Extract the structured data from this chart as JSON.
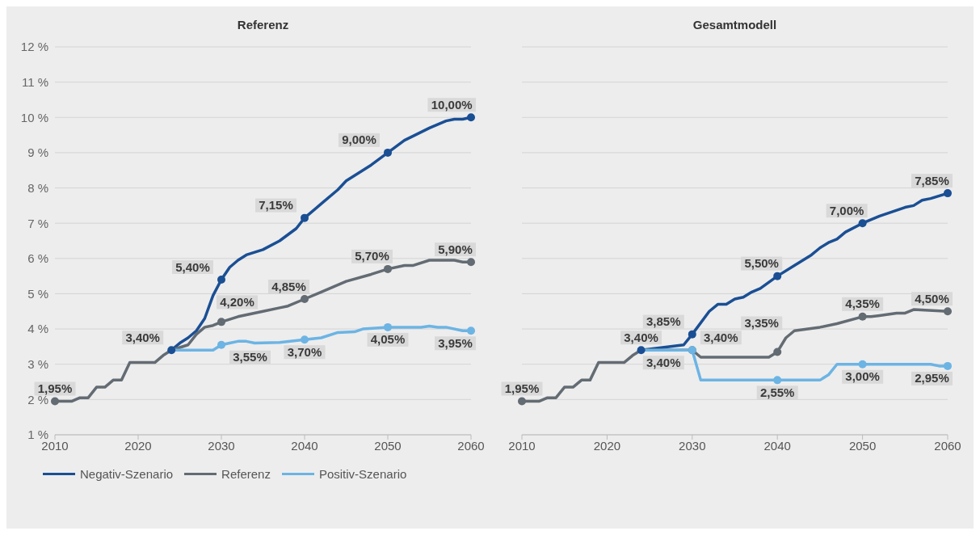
{
  "chart_data": [
    {
      "type": "line",
      "title": "Referenz",
      "xlim": [
        2010,
        2060
      ],
      "xticks": [
        2010,
        2020,
        2030,
        2040,
        2050,
        2060
      ],
      "ylim": [
        1,
        12
      ],
      "yticks": [
        {
          "value": 1,
          "label": "1 %"
        },
        {
          "value": 2,
          "label": "2 %"
        },
        {
          "value": 3,
          "label": "3 %"
        },
        {
          "value": 4,
          "label": "4 %"
        },
        {
          "value": 5,
          "label": "5 %"
        },
        {
          "value": 6,
          "label": "6 %"
        },
        {
          "value": 7,
          "label": "7 %"
        },
        {
          "value": 8,
          "label": "8 %"
        },
        {
          "value": 9,
          "label": "9 %"
        },
        {
          "value": 10,
          "label": "10 %"
        },
        {
          "value": 11,
          "label": "11 %"
        },
        {
          "value": 12,
          "label": "12 %"
        }
      ],
      "grid": "y",
      "legend": "bottom",
      "line_style": "solid",
      "series": [
        {
          "name": "Negativ-Szenario",
          "color": "#1a4f94",
          "x": [
            2024,
            2025,
            2026,
            2027,
            2028,
            2029,
            2030,
            2031,
            2032,
            2033,
            2035,
            2037,
            2039,
            2040,
            2042,
            2044,
            2045,
            2048,
            2050,
            2052,
            2055,
            2057,
            2058,
            2059,
            2060
          ],
          "values": [
            3.4,
            3.6,
            3.75,
            3.95,
            4.3,
            4.95,
            5.4,
            5.75,
            5.95,
            6.1,
            6.25,
            6.5,
            6.85,
            7.15,
            7.55,
            7.95,
            8.2,
            8.65,
            9.0,
            9.35,
            9.7,
            9.9,
            9.95,
            9.95,
            10.0
          ],
          "value_labels": [
            "3,40%",
            null,
            null,
            null,
            null,
            null,
            "5,40%",
            null,
            null,
            null,
            null,
            null,
            null,
            "7,15%",
            null,
            null,
            null,
            null,
            "9,00%",
            null,
            null,
            null,
            null,
            null,
            "10,00%"
          ]
        },
        {
          "name": "Referenz",
          "color": "#636b73",
          "x": [
            2010,
            2012,
            2013,
            2014,
            2015,
            2016,
            2017,
            2018,
            2019,
            2022,
            2023,
            2024,
            2026,
            2027,
            2028,
            2029,
            2030,
            2032,
            2035,
            2037,
            2038,
            2040,
            2042,
            2045,
            2048,
            2050,
            2052,
            2053,
            2055,
            2058,
            2059,
            2060
          ],
          "values": [
            1.95,
            1.95,
            2.05,
            2.05,
            2.35,
            2.35,
            2.55,
            2.55,
            3.05,
            3.05,
            3.25,
            3.4,
            3.55,
            3.85,
            4.05,
            4.1,
            4.2,
            4.35,
            4.5,
            4.6,
            4.65,
            4.85,
            5.05,
            5.35,
            5.55,
            5.7,
            5.8,
            5.8,
            5.95,
            5.95,
            5.9,
            5.9
          ],
          "value_labels": [
            "1,95%",
            null,
            null,
            null,
            null,
            null,
            null,
            null,
            null,
            null,
            null,
            null,
            null,
            null,
            null,
            null,
            "4,20%",
            null,
            null,
            null,
            null,
            "4,85%",
            null,
            null,
            null,
            "5,70%",
            null,
            null,
            null,
            null,
            null,
            "5,90%"
          ]
        },
        {
          "name": "Positiv-Szenario",
          "color": "#6cb4e4",
          "x": [
            2024,
            2029,
            2030,
            2031,
            2032,
            2033,
            2034,
            2037,
            2040,
            2042,
            2044,
            2046,
            2047,
            2050,
            2054,
            2055,
            2056,
            2057,
            2059,
            2060
          ],
          "values": [
            3.4,
            3.4,
            3.55,
            3.6,
            3.65,
            3.65,
            3.6,
            3.62,
            3.7,
            3.75,
            3.9,
            3.92,
            4.0,
            4.05,
            4.05,
            4.08,
            4.05,
            4.05,
            3.95,
            3.95
          ],
          "value_labels": [
            null,
            null,
            "3,55%",
            null,
            null,
            null,
            null,
            null,
            "3,70%",
            null,
            null,
            null,
            null,
            "4,05%",
            null,
            null,
            null,
            null,
            null,
            "3,95%"
          ]
        }
      ]
    },
    {
      "type": "line",
      "title": "Gesamtmodell",
      "tick_labels": "x",
      "xlim": [
        2010,
        2060
      ],
      "xticks": [
        2010,
        2020,
        2030,
        2040,
        2050,
        2060
      ],
      "ylim": [
        1,
        12
      ],
      "yticks": [
        1,
        2,
        3,
        4,
        5,
        6,
        7,
        8,
        9,
        10,
        11,
        12
      ],
      "grid": "y",
      "line_style": "solid",
      "series": [
        {
          "color": "#1a4f94",
          "x": [
            2024,
            2029,
            2030,
            2032,
            2033,
            2034,
            2035,
            2036,
            2037,
            2038,
            2040,
            2042,
            2044,
            2045,
            2046,
            2047,
            2048,
            2050,
            2052,
            2055,
            2056,
            2057,
            2058,
            2060
          ],
          "values": [
            3.4,
            3.55,
            3.85,
            4.5,
            4.7,
            4.7,
            4.85,
            4.9,
            5.05,
            5.15,
            5.5,
            5.8,
            6.1,
            6.3,
            6.45,
            6.55,
            6.75,
            7.0,
            7.2,
            7.45,
            7.5,
            7.65,
            7.7,
            7.85
          ],
          "value_labels": [
            "3,40%",
            null,
            "3,85%",
            null,
            null,
            null,
            null,
            null,
            null,
            null,
            "5,50%",
            null,
            null,
            null,
            null,
            null,
            null,
            "7,00%",
            null,
            null,
            null,
            null,
            null,
            "7,85%"
          ]
        },
        {
          "color": "#636b73",
          "x": [
            2010,
            2012,
            2013,
            2014,
            2015,
            2016,
            2017,
            2018,
            2019,
            2022,
            2023,
            2024,
            2030,
            2031,
            2039,
            2040,
            2041,
            2042,
            2045,
            2047,
            2050,
            2051,
            2052,
            2054,
            2055,
            2056,
            2060
          ],
          "values": [
            1.95,
            1.95,
            2.05,
            2.05,
            2.35,
            2.35,
            2.55,
            2.55,
            3.05,
            3.05,
            3.25,
            3.4,
            3.4,
            3.2,
            3.2,
            3.35,
            3.75,
            3.95,
            4.05,
            4.15,
            4.35,
            4.35,
            4.38,
            4.45,
            4.45,
            4.55,
            4.5
          ],
          "value_labels": [
            "1,95%",
            null,
            null,
            null,
            null,
            null,
            null,
            null,
            null,
            null,
            null,
            null,
            "3,40%",
            null,
            null,
            "3,35%",
            null,
            null,
            null,
            null,
            "4,35%",
            null,
            null,
            null,
            null,
            null,
            "4,50%"
          ]
        },
        {
          "color": "#6cb4e4",
          "x": [
            2024,
            2030,
            2031,
            2040,
            2045,
            2046,
            2047,
            2050,
            2058,
            2059,
            2060
          ],
          "values": [
            3.4,
            3.4,
            2.55,
            2.55,
            2.55,
            2.7,
            3.0,
            3.0,
            3.0,
            2.95,
            2.95
          ],
          "value_labels": [
            null,
            "3,40%",
            null,
            "2,55%",
            null,
            null,
            null,
            "3,00%",
            null,
            null,
            "2,95%"
          ]
        }
      ]
    }
  ]
}
